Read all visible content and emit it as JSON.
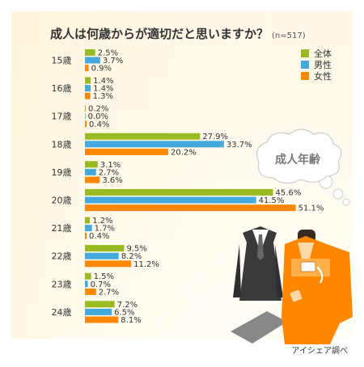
{
  "title": "成人は何歳からが適切だと思いますか？",
  "sample_note": "(n=517)",
  "bubble_text": "成人年齢",
  "credit": "アイシェア調べ",
  "chart_data": {
    "type": "bar",
    "orientation": "horizontal",
    "categories": [
      "15歳",
      "16歳",
      "17歳",
      "18歳",
      "19歳",
      "20歳",
      "21歳",
      "22歳",
      "23歳",
      "24歳"
    ],
    "series": [
      {
        "name": "全体",
        "color": "#99bb22",
        "values": [
          2.5,
          1.4,
          0.2,
          27.9,
          3.1,
          45.6,
          1.2,
          9.5,
          1.5,
          7.2
        ]
      },
      {
        "name": "男性",
        "color": "#44aadd",
        "values": [
          3.7,
          1.4,
          0.0,
          33.7,
          2.7,
          41.5,
          1.7,
          8.2,
          0.7,
          6.5
        ]
      },
      {
        "name": "女性",
        "color": "#ff8800",
        "values": [
          0.9,
          1.3,
          0.4,
          20.2,
          3.6,
          51.1,
          0.4,
          11.2,
          2.7,
          8.1
        ]
      }
    ],
    "value_labels": [
      [
        "2.5%",
        "1.4%",
        "0.2%",
        "27.9%",
        "3.1%",
        "45.6%",
        "1.2%",
        "9.5%",
        "1.5%",
        "7.2%"
      ],
      [
        "3.7%",
        "1.4%",
        "0.0%",
        "33.7%",
        "2.7%",
        "41.5%",
        "1.7%",
        "8.2%",
        "0.7%",
        "6.5%"
      ],
      [
        "0.9%",
        "1.3%",
        "0.4%",
        "20.2%",
        "3.6%",
        "51.1%",
        "0.4%",
        "11.2%",
        "2.7%",
        "8.1%"
      ]
    ],
    "legend_position": "top-right",
    "grid": false
  }
}
